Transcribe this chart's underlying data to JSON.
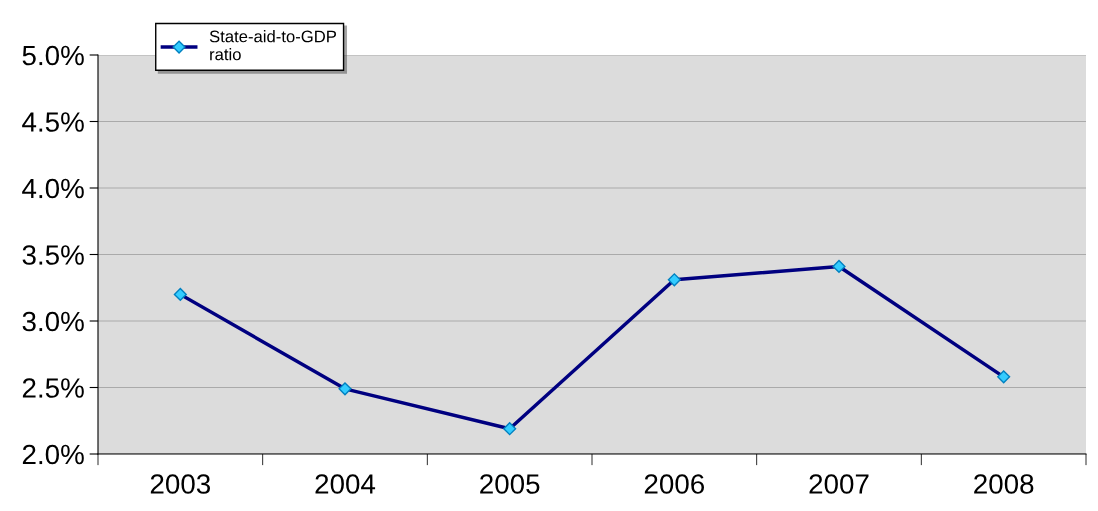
{
  "chart_data": {
    "type": "line",
    "categories": [
      "2003",
      "2004",
      "2005",
      "2006",
      "2007",
      "2008"
    ],
    "series": [
      {
        "name": "State-aid-to-GDP\nratio",
        "color": "#000080",
        "values": [
          3.2,
          2.49,
          2.19,
          3.31,
          3.41,
          2.58
        ]
      }
    ],
    "ylim": [
      2.0,
      5.0
    ],
    "yticks": [
      {
        "value": 2.0,
        "label": "2.0%"
      },
      {
        "value": 2.5,
        "label": "2.5%"
      },
      {
        "value": 3.0,
        "label": "3.0%"
      },
      {
        "value": 3.5,
        "label": "3.5%"
      },
      {
        "value": 4.0,
        "label": "4.0%"
      },
      {
        "value": 4.5,
        "label": "4.5%"
      },
      {
        "value": 5.0,
        "label": "5.0%"
      }
    ],
    "grid": "y",
    "legend": "top left",
    "marker": "diamond",
    "line_style": "solid"
  }
}
